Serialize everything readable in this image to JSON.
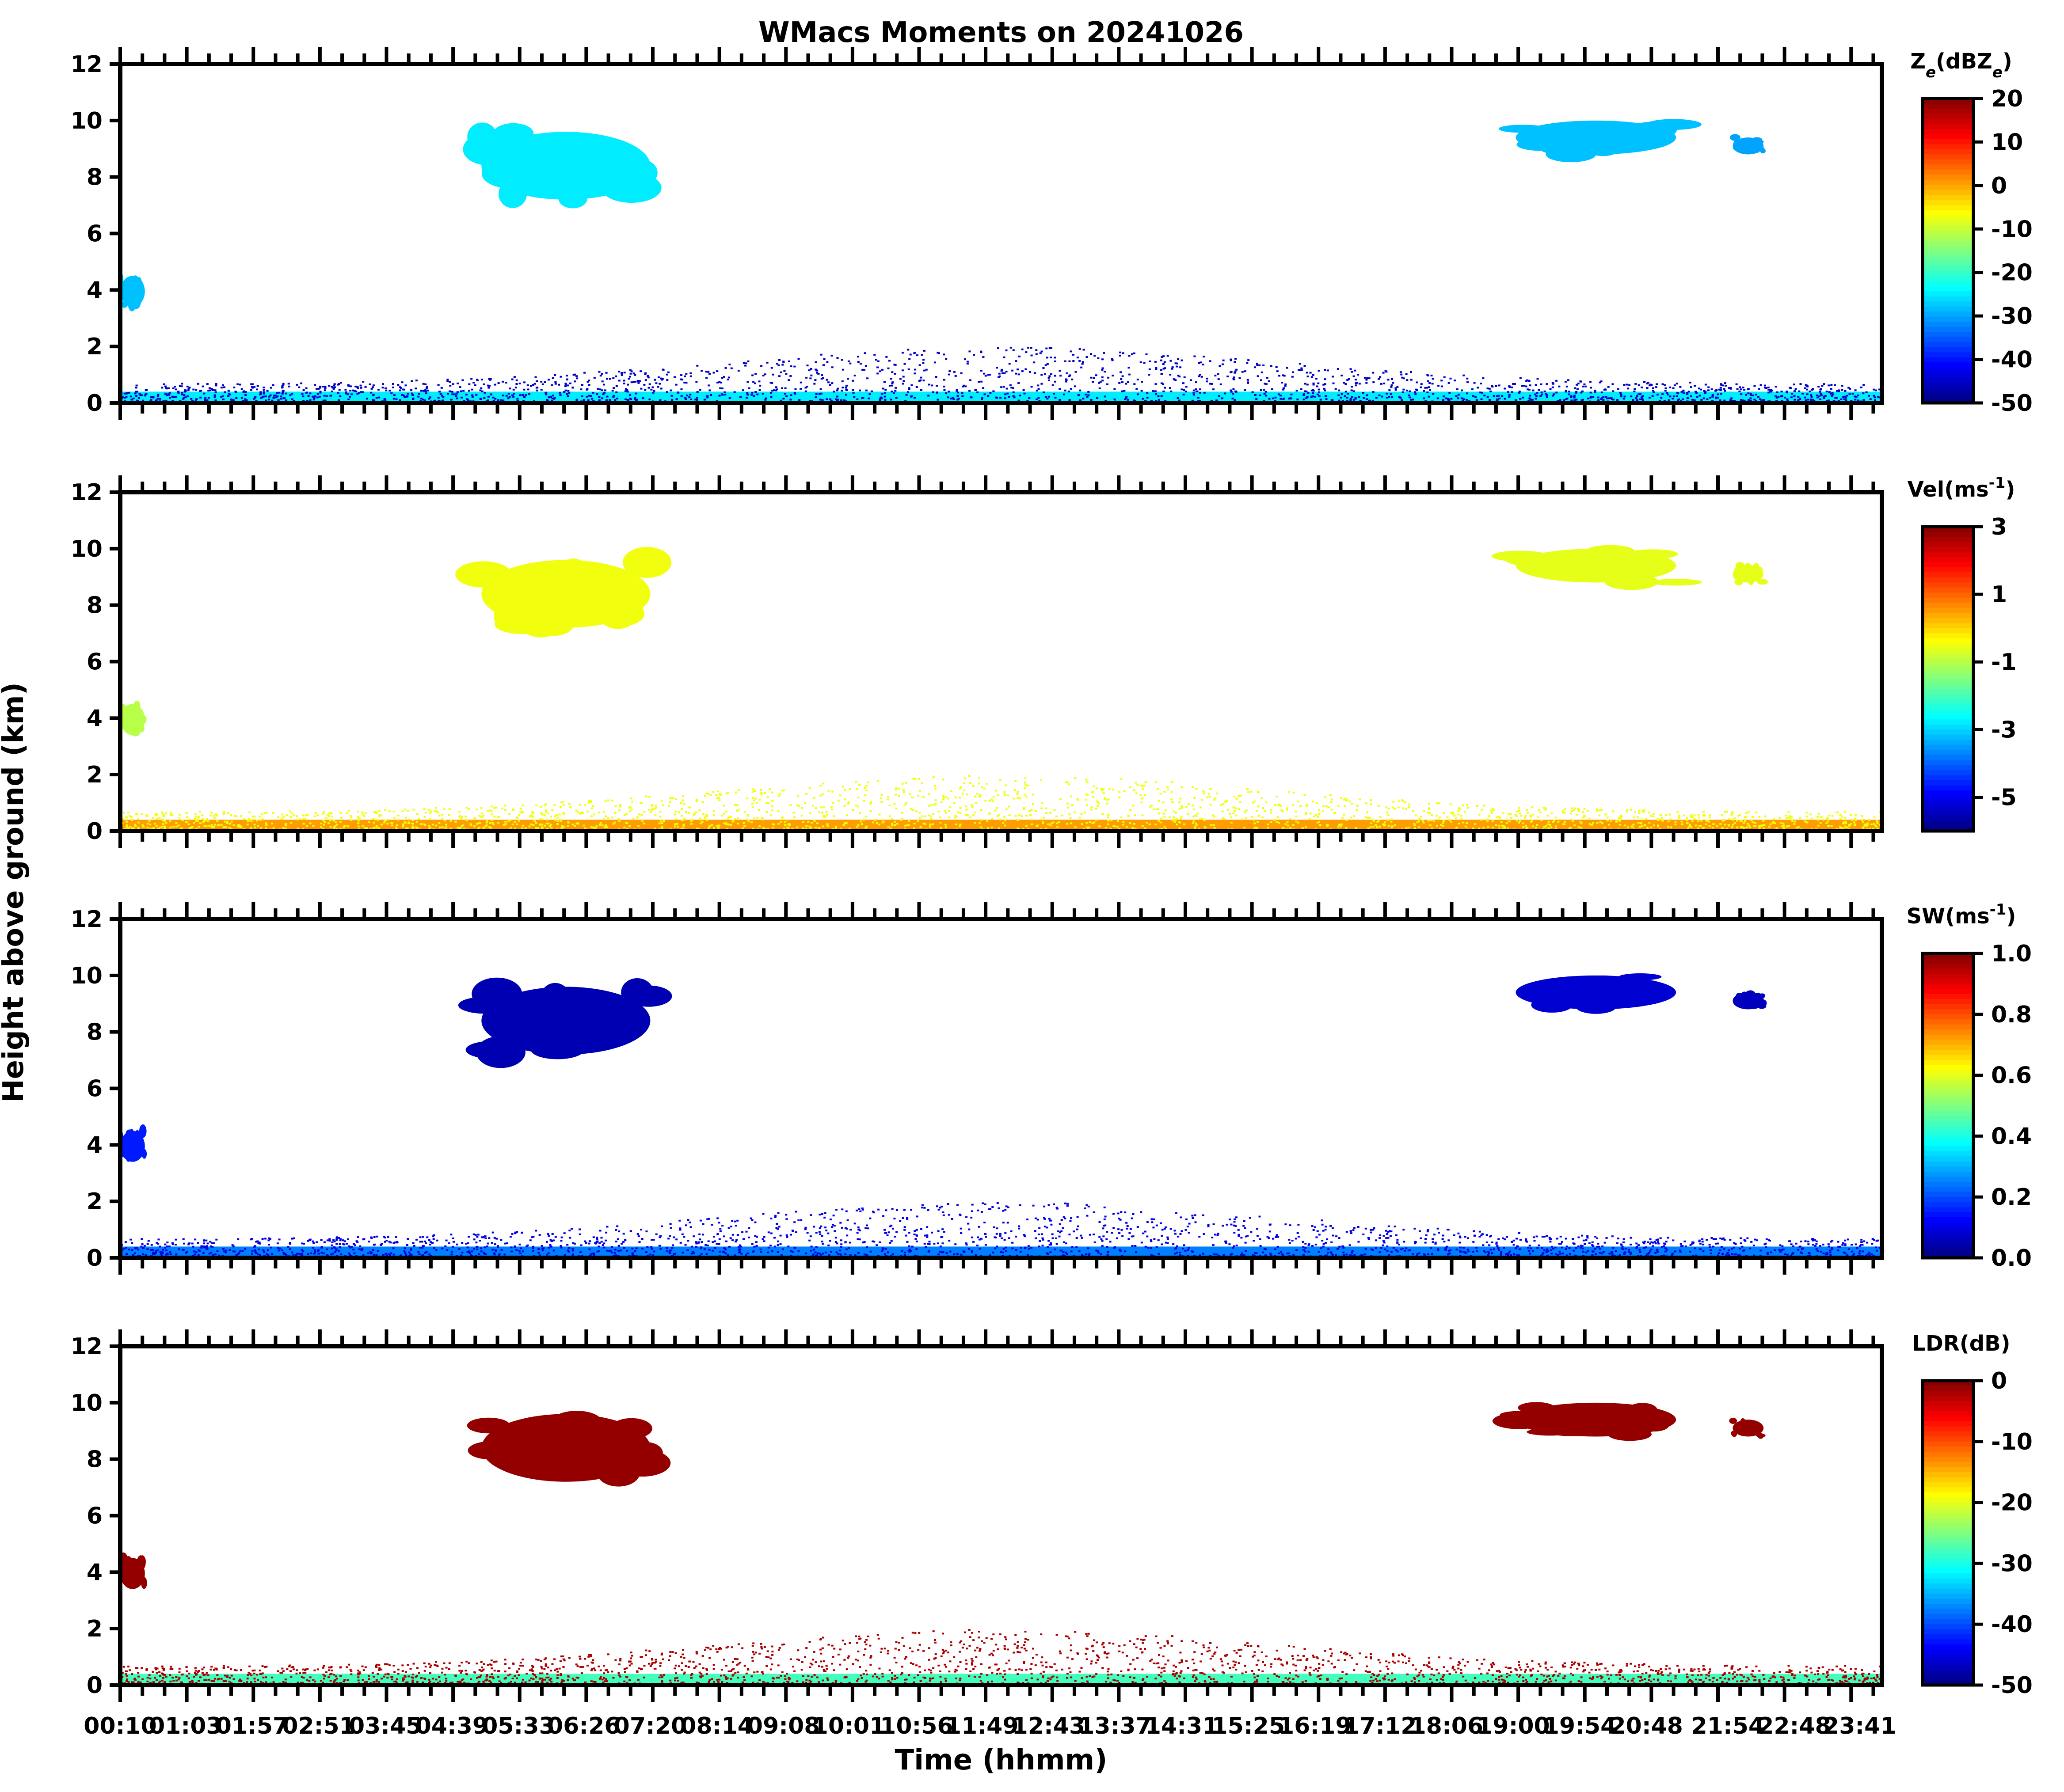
{
  "chart_data": {
    "type": "heatmap",
    "title": "WMacs Moments on 20241026",
    "xlabel": "Time (hhmm)",
    "ylabel": "Height above ground (km)",
    "xlim": [
      "00:10",
      "23:59"
    ],
    "ylim": [
      0,
      12
    ],
    "yticks": [
      0,
      2,
      4,
      6,
      8,
      10,
      12
    ],
    "xticks": [
      "00:10",
      "01:03",
      "01:57",
      "02:51",
      "03:45",
      "04:39",
      "05:33",
      "06:26",
      "07:20",
      "08:14",
      "09:08",
      "10:01",
      "10:56",
      "11:49",
      "12:43",
      "13:37",
      "14:31",
      "15:25",
      "16:19",
      "17:12",
      "18:06",
      "19:00",
      "19:54",
      "20:48",
      "21:54",
      "22:48",
      "23:41"
    ],
    "grid": false,
    "colormap": "jet",
    "panels": [
      {
        "name": "Ze",
        "colorbar_label": "Z_e(dBZ_e)",
        "colorbar_ticks": [
          20,
          10,
          0,
          -10,
          -20,
          -30,
          -40,
          -50
        ],
        "vmin": -50,
        "vmax": 20,
        "features": [
          {
            "what": "boundary layer echo",
            "time": [
              "00:10",
              "23:59"
            ],
            "height_km": [
              0,
              0.4
            ],
            "value": -25
          },
          {
            "what": "scattered low echo",
            "time": [
              "00:10",
              "23:59"
            ],
            "height_km": [
              0,
              2.0
            ],
            "value": -45
          },
          {
            "what": "mid cloud",
            "time": [
              "00:10",
              "00:30"
            ],
            "height_km": [
              3.4,
              4.5
            ],
            "value": -28
          },
          {
            "what": "cirrus",
            "time": [
              "05:03",
              "07:20"
            ],
            "height_km": [
              7.2,
              9.6
            ],
            "value": -25
          },
          {
            "what": "cirrus",
            "time": [
              "19:02",
              "21:12"
            ],
            "height_km": [
              8.8,
              10.0
            ],
            "value": -28
          },
          {
            "what": "cirrus",
            "time": [
              "21:58",
              "22:23"
            ],
            "height_km": [
              8.8,
              9.4
            ],
            "value": -30
          }
        ]
      },
      {
        "name": "Vel",
        "colorbar_label": "Vel(ms^-1)",
        "colorbar_ticks": [
          3,
          1,
          -1,
          -3,
          -5
        ],
        "vmin": -6,
        "vmax": 3,
        "features": [
          {
            "what": "boundary layer echo",
            "time": [
              "00:10",
              "23:59"
            ],
            "height_km": [
              0,
              0.4
            ],
            "value": 0.5
          },
          {
            "what": "scattered low echo",
            "time": [
              "00:10",
              "23:59"
            ],
            "height_km": [
              0,
              2.0
            ],
            "value": -0.5
          },
          {
            "what": "mid cloud",
            "time": [
              "00:10",
              "00:30"
            ],
            "height_km": [
              3.4,
              4.5
            ],
            "value": -1.0
          },
          {
            "what": "cirrus",
            "time": [
              "05:03",
              "07:20"
            ],
            "height_km": [
              7.2,
              9.6
            ],
            "value": -0.5
          },
          {
            "what": "cirrus",
            "time": [
              "19:02",
              "21:12"
            ],
            "height_km": [
              8.8,
              10.0
            ],
            "value": -0.6
          },
          {
            "what": "cirrus",
            "time": [
              "21:58",
              "22:23"
            ],
            "height_km": [
              8.8,
              9.4
            ],
            "value": -0.6
          }
        ]
      },
      {
        "name": "SW",
        "colorbar_label": "SW(ms^-1)",
        "colorbar_ticks": [
          1.0,
          0.8,
          0.6,
          0.4,
          0.2,
          0.0
        ],
        "vmin": 0.0,
        "vmax": 1.0,
        "features": [
          {
            "what": "boundary layer echo",
            "time": [
              "00:10",
              "23:59"
            ],
            "height_km": [
              0,
              0.4
            ],
            "value": 0.25
          },
          {
            "what": "scattered low echo",
            "time": [
              "00:10",
              "23:59"
            ],
            "height_km": [
              0,
              2.0
            ],
            "value": 0.1
          },
          {
            "what": "mid cloud",
            "time": [
              "00:10",
              "00:30"
            ],
            "height_km": [
              3.4,
              4.5
            ],
            "value": 0.15
          },
          {
            "what": "cirrus",
            "time": [
              "05:03",
              "07:20"
            ],
            "height_km": [
              7.2,
              9.6
            ],
            "value": 0.05
          },
          {
            "what": "cirrus",
            "time": [
              "19:02",
              "21:12"
            ],
            "height_km": [
              8.8,
              10.0
            ],
            "value": 0.08
          },
          {
            "what": "cirrus",
            "time": [
              "21:58",
              "22:23"
            ],
            "height_km": [
              8.8,
              9.4
            ],
            "value": 0.06
          }
        ]
      },
      {
        "name": "LDR",
        "colorbar_label": "LDR(dB)",
        "colorbar_ticks": [
          0,
          -10,
          -20,
          -30,
          -40,
          -50
        ],
        "vmin": -50,
        "vmax": 0,
        "features": [
          {
            "what": "boundary layer echo",
            "time": [
              "00:10",
              "23:59"
            ],
            "height_km": [
              0,
              0.4
            ],
            "value": -28
          },
          {
            "what": "scattered low echo",
            "time": [
              "00:10",
              "23:59"
            ],
            "height_km": [
              0,
              2.0
            ],
            "value": -2
          },
          {
            "what": "mid cloud",
            "time": [
              "00:10",
              "00:30"
            ],
            "height_km": [
              3.4,
              4.5
            ],
            "value": -1
          },
          {
            "what": "cirrus",
            "time": [
              "05:03",
              "07:20"
            ],
            "height_km": [
              7.2,
              9.6
            ],
            "value": -1
          },
          {
            "what": "cirrus",
            "time": [
              "19:02",
              "21:12"
            ],
            "height_km": [
              8.8,
              10.0
            ],
            "value": -1
          },
          {
            "what": "cirrus",
            "time": [
              "21:58",
              "22:23"
            ],
            "height_km": [
              8.8,
              9.4
            ],
            "value": -1
          }
        ]
      }
    ]
  }
}
